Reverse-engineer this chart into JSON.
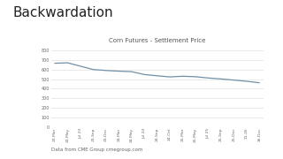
{
  "title": "Backwardation",
  "chart_title": "Corn Futures - Settlement Price",
  "footnote": "Data from CME Group cmegroup.com",
  "x_labels": [
    "23-Mar",
    "23-May",
    "Jul 23",
    "23-Sep",
    "23-Dec",
    "24-Mar",
    "24-May",
    "Jul 24",
    "24-Sep",
    "24-Oct",
    "25-Mar",
    "25-May",
    "Jul 25",
    "25-Sep",
    "25-Dec",
    "11-26",
    "26-Dec"
  ],
  "y_values": [
    665,
    670,
    635,
    600,
    590,
    583,
    578,
    548,
    535,
    523,
    530,
    525,
    512,
    502,
    490,
    478,
    462
  ],
  "y_ticks": [
    0,
    100,
    200,
    300,
    400,
    500,
    600,
    700,
    800
  ],
  "ylim": [
    0,
    860
  ],
  "line_color": "#7090a8",
  "bg_color": "#ffffff",
  "chart_bg": "#ffffff",
  "grid_color": "#d8d8d8",
  "title_fontsize": 11,
  "title_color": "#222222",
  "chart_title_fontsize": 5.0,
  "chart_title_color": "#555555",
  "footnote_fontsize": 4.0,
  "footnote_color": "#666666",
  "tick_fontsize": 3.2,
  "ytick_fontsize": 3.5,
  "tick_color": "#666666"
}
